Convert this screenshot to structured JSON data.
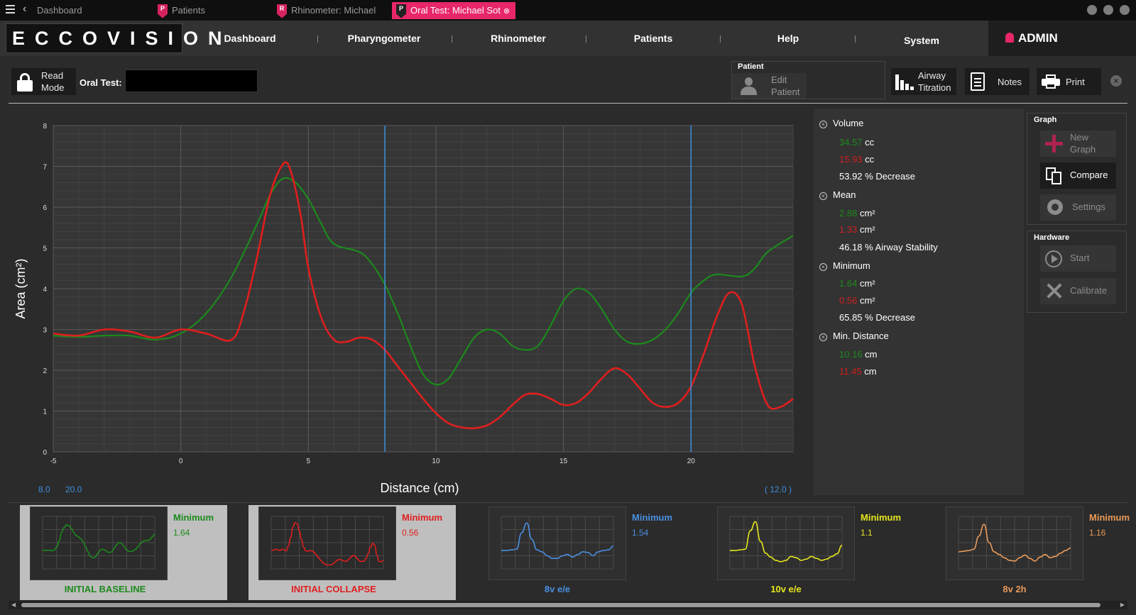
{
  "titlebar": {
    "tabs": [
      {
        "label": "Dashboard",
        "badge": ""
      },
      {
        "label": "Patients",
        "badge": "P"
      },
      {
        "label": "Rhinometer: Michael",
        "badge": "R"
      },
      {
        "label": "Oral Test: Michael  Sot",
        "badge": "P"
      }
    ]
  },
  "nav": {
    "logo": "ECCOVISION",
    "items": [
      "Dashboard",
      "Pharyngometer",
      "Rhinometer",
      "Patients",
      "Help",
      "System"
    ],
    "user": "ADMIN"
  },
  "toolbar": {
    "read_mode": [
      "Read",
      "Mode"
    ],
    "oral_test_label": "Oral Test:",
    "oral_test_value": "",
    "patient_group": "Patient",
    "edit_patient": [
      "Edit",
      "Patient"
    ],
    "airway_titration": [
      "Airway",
      "Titration"
    ],
    "notes": "Notes",
    "print": "Print"
  },
  "chart_data": {
    "type": "line",
    "xlabel": "Distance (cm)",
    "ylabel": "Area (cm²)",
    "xlim": [
      -5,
      24
    ],
    "ylim": [
      0,
      8
    ],
    "x_ticks": [
      -5,
      0,
      5,
      10,
      15,
      20
    ],
    "y_ticks": [
      0,
      1,
      2,
      3,
      4,
      5,
      6,
      7,
      8
    ],
    "cursors": [
      8.0,
      20.0
    ],
    "cursor_labels": {
      "left": "8.0",
      "right": "20.0",
      "span": "( 12.0 )"
    },
    "grid": true,
    "series": [
      {
        "color": "#1c8a1c",
        "x": [
          -5,
          -4,
          -3,
          -2,
          -1,
          0,
          1,
          2,
          3,
          3.5,
          4,
          4.5,
          5,
          5.5,
          6,
          7,
          7.5,
          8,
          8.5,
          9,
          9.5,
          10,
          10.5,
          11,
          11.5,
          12,
          12.5,
          13,
          13.5,
          14,
          14.5,
          15,
          15.5,
          16,
          16.5,
          17,
          17.5,
          18,
          18.5,
          19,
          19.5,
          20,
          20.5,
          21,
          22,
          22.5,
          23,
          24
        ],
        "y": [
          2.85,
          2.82,
          2.85,
          2.85,
          2.75,
          2.9,
          3.4,
          4.3,
          5.6,
          6.3,
          6.7,
          6.6,
          6.2,
          5.6,
          5.1,
          4.9,
          4.6,
          4.1,
          3.4,
          2.6,
          1.9,
          1.65,
          1.8,
          2.3,
          2.8,
          3.0,
          2.9,
          2.6,
          2.5,
          2.6,
          3.1,
          3.7,
          4.0,
          3.9,
          3.5,
          3.0,
          2.7,
          2.65,
          2.75,
          3.0,
          3.4,
          3.9,
          4.2,
          4.35,
          4.3,
          4.5,
          4.9,
          5.3
        ]
      },
      {
        "color": "#e01e1e",
        "x": [
          -5,
          -4,
          -3,
          -2,
          -1,
          0,
          1,
          2,
          2.5,
          3,
          3.5,
          4,
          4.3,
          4.7,
          5,
          5.5,
          6,
          6.5,
          7,
          7.5,
          8,
          8.5,
          9,
          9.5,
          10,
          10.5,
          11,
          11.5,
          12,
          12.5,
          13,
          13.5,
          14,
          14.5,
          15,
          15.5,
          16,
          16.5,
          17,
          17.5,
          18,
          18.5,
          19,
          19.5,
          20,
          20.5,
          21,
          21.5,
          22,
          22.5,
          23,
          23.5,
          24
        ],
        "y": [
          2.9,
          2.85,
          3.0,
          2.95,
          2.8,
          3.0,
          2.9,
          2.75,
          3.5,
          4.8,
          6.3,
          7.05,
          6.9,
          5.8,
          4.5,
          3.3,
          2.75,
          2.7,
          2.8,
          2.75,
          2.5,
          2.1,
          1.7,
          1.3,
          0.95,
          0.7,
          0.6,
          0.58,
          0.65,
          0.85,
          1.15,
          1.4,
          1.42,
          1.3,
          1.15,
          1.2,
          1.45,
          1.8,
          2.05,
          1.9,
          1.55,
          1.2,
          1.1,
          1.2,
          1.6,
          2.4,
          3.3,
          3.9,
          3.6,
          2.1,
          1.15,
          1.1,
          1.3
        ]
      }
    ]
  },
  "stats": {
    "volume": {
      "label": "Volume",
      "green": "34.57",
      "red": "15.93",
      "unit": "cc",
      "summary": "53.92 % Decrease"
    },
    "mean": {
      "label": "Mean",
      "green": "2.88",
      "red": "1.33",
      "unit": "cm²",
      "summary": "46.18 % Airway Stability"
    },
    "minimum": {
      "label": "Minimum",
      "green": "1.64",
      "red": "0.56",
      "unit": "cm²",
      "summary": "65.85 % Decrease"
    },
    "min_distance": {
      "label": "Min. Distance",
      "green": "10.16",
      "red": "11.45",
      "unit": "cm"
    }
  },
  "right_panel": {
    "graph_group": "Graph",
    "new_graph": [
      "New",
      "Graph"
    ],
    "compare": "Compare",
    "settings": "Settings",
    "hardware_group": "Hardware",
    "start": "Start",
    "calibrate": "Calibrate"
  },
  "thumbnails": [
    {
      "name": "INITIAL BASELINE",
      "min_label": "Minimum",
      "min_value": "1.64",
      "color": "#1c8a1c",
      "selected": true
    },
    {
      "name": "INITIAL COLLAPSE",
      "min_label": "Minimum",
      "min_value": "0.56",
      "color": "#e01e1e",
      "selected": true
    },
    {
      "name": "8v e/e",
      "min_label": "Minimum",
      "min_value": "1.54",
      "color": "#4a8fe0",
      "selected": false
    },
    {
      "name": "10v e/e",
      "min_label": "Minimum",
      "min_value": "1.1",
      "color": "#e6e61e",
      "selected": false
    },
    {
      "name": "8v 2h",
      "min_label": "Minimum",
      "min_value": "1.16",
      "color": "#e89a5a",
      "selected": false
    }
  ]
}
